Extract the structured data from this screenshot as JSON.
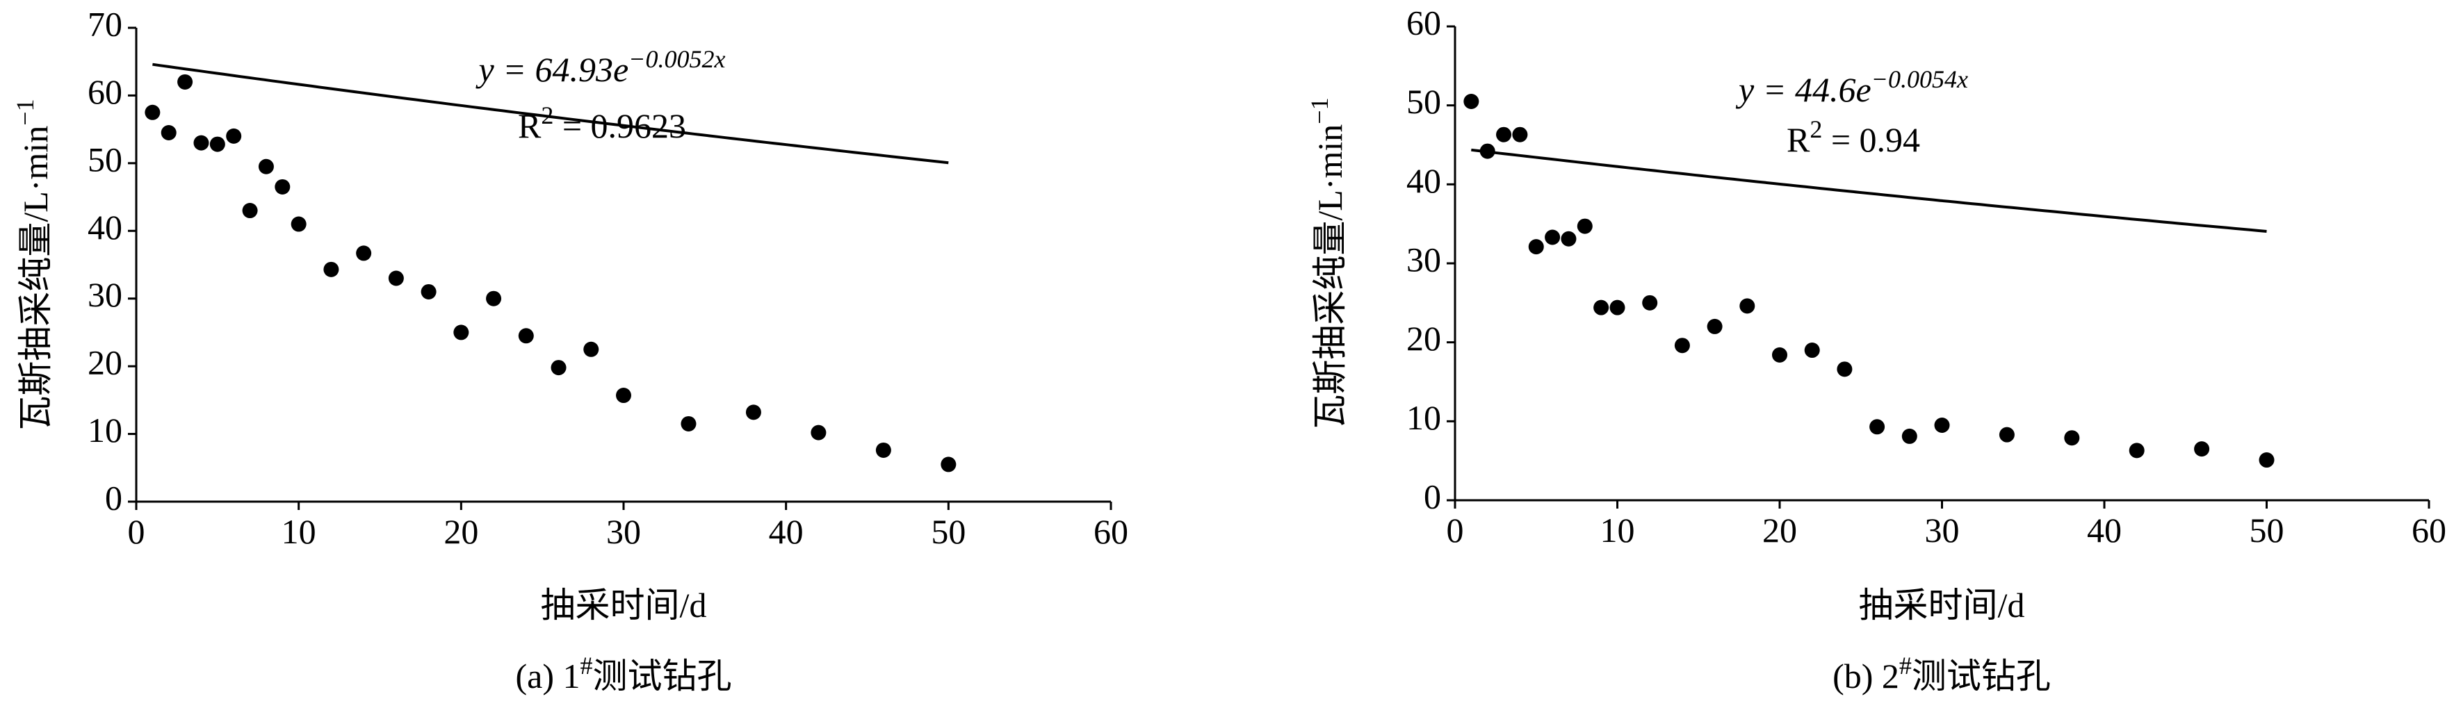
{
  "chart_data": [
    {
      "type": "scatter",
      "x_label": "抽采时间/d",
      "y_label": [
        "瓦斯抽采纯量/L·min",
        "−1"
      ],
      "caption": [
        "(a) 1",
        "#",
        "测试钻孔"
      ],
      "equation": [
        "y = 64.93e",
        "−0.0052x"
      ],
      "r2_label": [
        "R",
        "2",
        " = 0.9623"
      ],
      "trendline": {
        "type": "exponential",
        "a": 64.93,
        "b": -0.0052
      },
      "color": "#000000",
      "x": [
        1,
        2,
        3,
        4,
        5,
        6,
        7,
        8,
        9,
        10,
        12,
        14,
        16,
        18,
        20,
        22,
        24,
        26,
        28,
        30,
        34,
        38,
        42,
        46,
        50
      ],
      "values": [
        57.5,
        54.5,
        62,
        53,
        52.8,
        54,
        43,
        49.5,
        46.5,
        41,
        34.3,
        36.7,
        33,
        31,
        25,
        30,
        24.5,
        19.8,
        22.5,
        15.7,
        11.5,
        13.2,
        10.2,
        7.6,
        5.5
      ],
      "xlim": [
        0,
        60
      ],
      "xticks": [
        0,
        10,
        20,
        30,
        40,
        50,
        60
      ],
      "ylim": [
        0,
        70
      ],
      "yticks": [
        0,
        10,
        20,
        30,
        40,
        50,
        60,
        70
      ]
    },
    {
      "type": "scatter",
      "x_label": "抽采时间/d",
      "y_label": [
        "瓦斯抽采纯量/L·min",
        "−1"
      ],
      "caption": [
        "(b) 2",
        "#",
        "测试钻孔"
      ],
      "equation": [
        "y = 44.6e",
        "−0.0054x"
      ],
      "r2_label": [
        "R",
        "2",
        " = 0.94"
      ],
      "trendline": {
        "type": "exponential",
        "a": 44.6,
        "b": -0.0054
      },
      "color": "#000000",
      "x": [
        1,
        2,
        3,
        4,
        5,
        6,
        7,
        8,
        9,
        10,
        12,
        14,
        16,
        18,
        20,
        22,
        24,
        26,
        28,
        30,
        34,
        38,
        42,
        46,
        50
      ],
      "values": [
        50.5,
        44.2,
        46.3,
        46.3,
        32.1,
        33.3,
        33.1,
        34.7,
        24.4,
        24.4,
        25,
        19.6,
        22,
        24.6,
        18.4,
        19,
        16.6,
        9.3,
        8.1,
        9.5,
        8.3,
        7.9,
        6.3,
        6.5,
        5.1
      ],
      "xlim": [
        0,
        60
      ],
      "xticks": [
        0,
        10,
        20,
        30,
        40,
        50,
        60
      ],
      "ylim": [
        0,
        60
      ],
      "yticks": [
        0,
        10,
        20,
        30,
        40,
        50,
        60
      ]
    }
  ]
}
